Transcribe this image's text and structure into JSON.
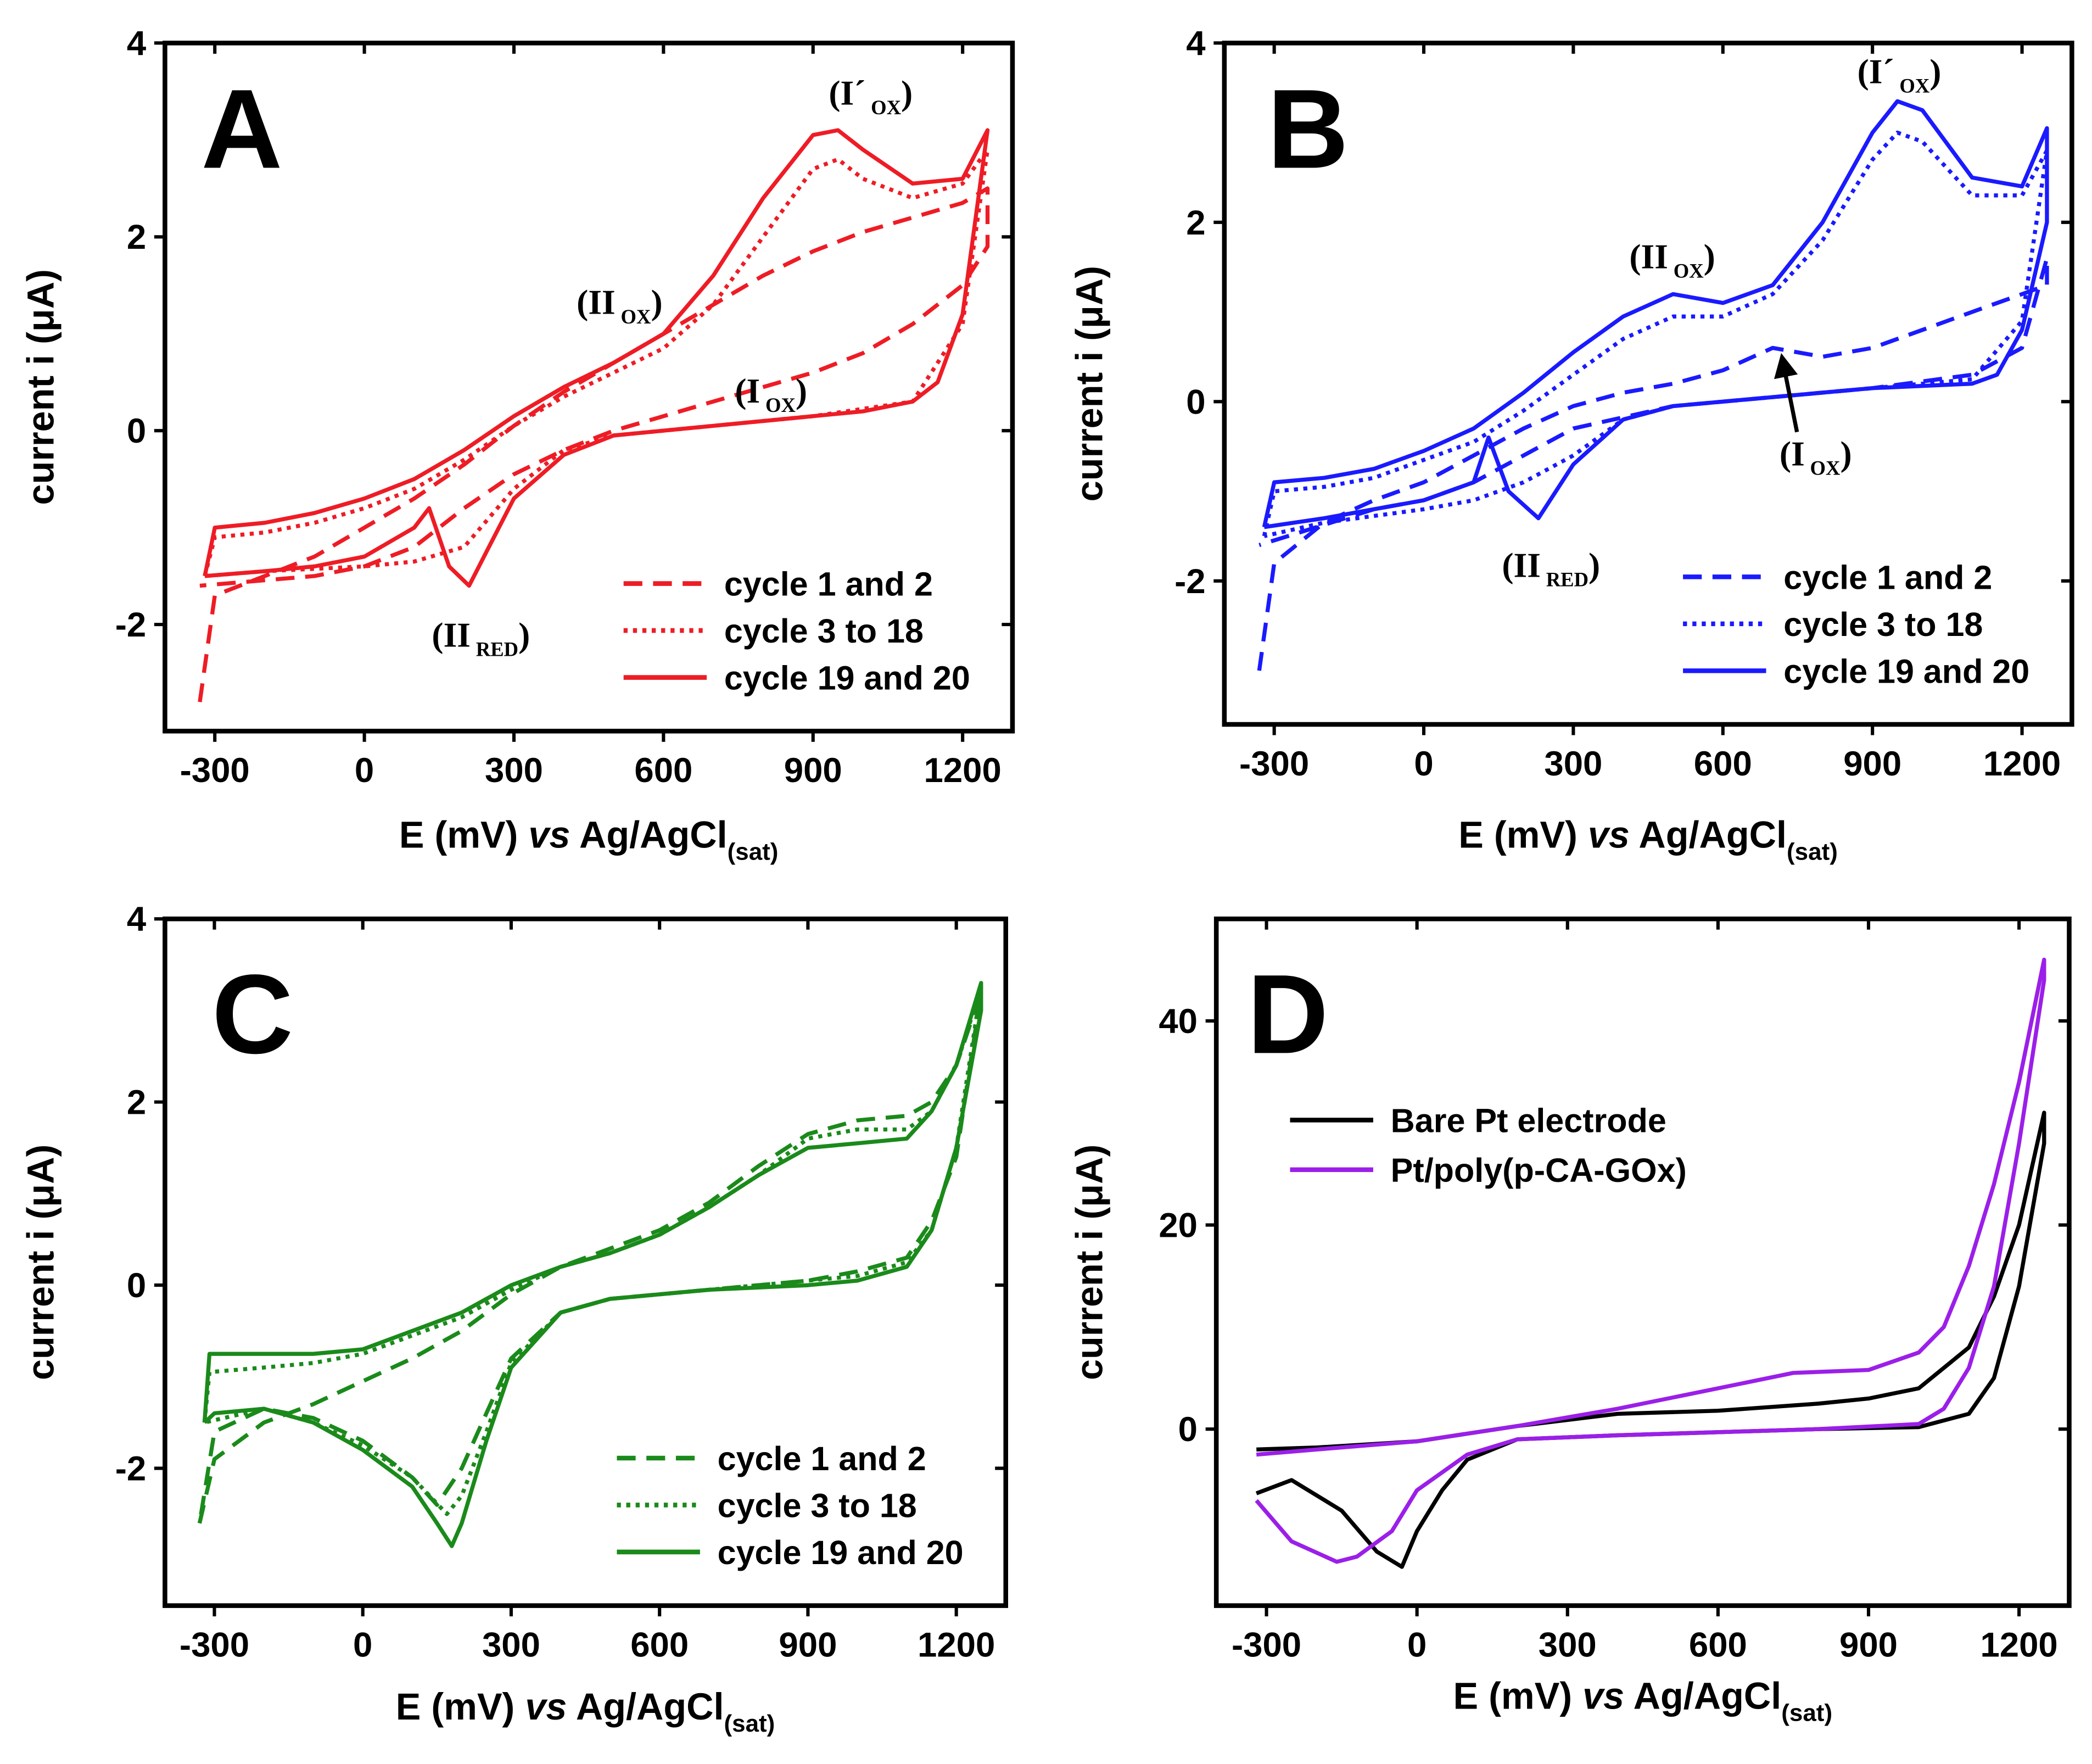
{
  "chart_data": [
    {
      "type": "line",
      "title": "A",
      "legend": "lower right",
      "x_label": {
        "pre": "E (mV) ",
        "italic": "vs",
        "post": " Ag/AgCl",
        "sub": "(sat)"
      },
      "y_label": "current i (μA)",
      "xlim": [
        -400,
        1300
      ],
      "xticks": [
        -300,
        0,
        300,
        600,
        900,
        1200
      ],
      "ylim": [
        -3.1,
        4
      ],
      "yticks": [
        -2,
        0,
        2,
        4
      ],
      "annotations": [
        {
          "main": "(I´",
          "sub": "OX",
          "end": ")"
        },
        {
          "main": "(II",
          "sub": "OX",
          "end": ")"
        },
        {
          "main": "(I",
          "sub": "OX",
          "end": ")"
        },
        {
          "main": "(II",
          "sub": "RED",
          "end": ")"
        }
      ],
      "series": [
        {
          "name": "cycle 1 and 2",
          "color": "#ee1c25",
          "linestyle": "dashed",
          "x": [
            -330,
            -300,
            -200,
            -100,
            0,
            100,
            200,
            300,
            400,
            500,
            600,
            700,
            800,
            900,
            1000,
            1100,
            1200,
            1250,
            1250,
            1200,
            1100,
            1000,
            900,
            800,
            700,
            600,
            500,
            400,
            300,
            200,
            100,
            0,
            -100,
            -330
          ],
          "values": [
            -2.8,
            -1.7,
            -1.5,
            -1.3,
            -1.0,
            -0.7,
            -0.35,
            0.05,
            0.4,
            0.7,
            1.0,
            1.3,
            1.6,
            1.85,
            2.05,
            2.2,
            2.35,
            2.5,
            1.9,
            1.5,
            1.1,
            0.8,
            0.6,
            0.45,
            0.3,
            0.15,
            0.0,
            -0.2,
            -0.45,
            -0.8,
            -1.2,
            -1.4,
            -1.5,
            -1.6
          ]
        },
        {
          "name": "cycle 3 to 18",
          "color": "#ee1c25",
          "linestyle": "dotted",
          "x": [
            -320,
            -300,
            -200,
            -100,
            0,
            100,
            200,
            300,
            400,
            500,
            600,
            700,
            800,
            900,
            950,
            1000,
            1100,
            1200,
            1250,
            1200,
            1100,
            900,
            700,
            500,
            400,
            300,
            200,
            100,
            0,
            -200,
            -320
          ],
          "values": [
            -1.5,
            -1.1,
            -1.05,
            -0.95,
            -0.8,
            -0.6,
            -0.3,
            0.05,
            0.35,
            0.6,
            0.85,
            1.3,
            2.0,
            2.7,
            2.8,
            2.6,
            2.4,
            2.55,
            2.9,
            1.1,
            0.3,
            0.15,
            0.05,
            -0.05,
            -0.2,
            -0.6,
            -1.2,
            -1.35,
            -1.4,
            -1.45,
            -1.5
          ]
        },
        {
          "name": "cycle 19 and 20",
          "color": "#ee1c25",
          "linestyle": "solid",
          "x": [
            -320,
            -300,
            -200,
            -100,
            0,
            100,
            200,
            300,
            400,
            500,
            600,
            700,
            800,
            900,
            950,
            1000,
            1100,
            1200,
            1250,
            1200,
            1150,
            1100,
            1000,
            900,
            700,
            500,
            400,
            300,
            250,
            210,
            170,
            130,
            100,
            0,
            -100,
            -200,
            -320
          ],
          "values": [
            -1.5,
            -1.0,
            -0.95,
            -0.85,
            -0.7,
            -0.5,
            -0.2,
            0.15,
            0.45,
            0.7,
            1.0,
            1.6,
            2.4,
            3.05,
            3.1,
            2.9,
            2.55,
            2.6,
            3.1,
            1.2,
            0.5,
            0.3,
            0.2,
            0.15,
            0.05,
            -0.05,
            -0.25,
            -0.7,
            -1.2,
            -1.6,
            -1.4,
            -0.8,
            -1.0,
            -1.3,
            -1.4,
            -1.45,
            -1.5
          ]
        }
      ]
    },
    {
      "type": "line",
      "title": "B",
      "legend": "lower right",
      "x_label": {
        "pre": "E (mV) ",
        "italic": "vs",
        "post": " Ag/AgCl",
        "sub": "(sat)"
      },
      "y_label": "current i (μA)",
      "xlim": [
        -400,
        1300
      ],
      "xticks": [
        -300,
        0,
        300,
        600,
        900,
        1200
      ],
      "ylim": [
        -3.6,
        4
      ],
      "yticks": [
        -2,
        0,
        2,
        4
      ],
      "annotations": [
        {
          "main": "(I´",
          "sub": "OX",
          "end": ")"
        },
        {
          "main": "(II",
          "sub": "OX",
          "end": ")"
        },
        {
          "main": "(I",
          "sub": "OX",
          "end": ")"
        },
        {
          "main": "(II",
          "sub": "RED",
          "end": ")"
        }
      ],
      "series": [
        {
          "name": "cycle 1 and 2",
          "color": "#1a1aff",
          "linestyle": "dashed",
          "x": [
            -330,
            -300,
            -200,
            -100,
            0,
            100,
            200,
            300,
            400,
            500,
            600,
            700,
            800,
            900,
            1000,
            1100,
            1200,
            1250,
            1250,
            1200,
            1100,
            900,
            700,
            500,
            300,
            200,
            100,
            0,
            -100,
            -330
          ],
          "values": [
            -3.0,
            -1.8,
            -1.35,
            -1.1,
            -0.9,
            -0.6,
            -0.3,
            -0.05,
            0.1,
            0.2,
            0.35,
            0.6,
            0.5,
            0.6,
            0.8,
            1.0,
            1.2,
            1.3,
            1.6,
            0.6,
            0.3,
            0.15,
            0.05,
            -0.05,
            -0.3,
            -0.6,
            -0.9,
            -1.1,
            -1.2,
            -1.6
          ]
        },
        {
          "name": "cycle 3 to 18",
          "color": "#1a1aff",
          "linestyle": "dotted",
          "x": [
            -320,
            -300,
            -200,
            -100,
            0,
            100,
            200,
            300,
            400,
            500,
            600,
            700,
            800,
            900,
            950,
            1000,
            1100,
            1200,
            1250,
            1200,
            1100,
            900,
            700,
            500,
            400,
            300,
            200,
            100,
            0,
            -200,
            -320
          ],
          "values": [
            -1.5,
            -1.0,
            -0.95,
            -0.85,
            -0.65,
            -0.45,
            -0.1,
            0.3,
            0.7,
            0.95,
            0.95,
            1.2,
            1.8,
            2.7,
            3.0,
            2.9,
            2.3,
            2.3,
            2.8,
            0.9,
            0.25,
            0.15,
            0.05,
            -0.05,
            -0.2,
            -0.6,
            -0.9,
            -1.1,
            -1.2,
            -1.35,
            -1.5
          ]
        },
        {
          "name": "cycle 19 and 20",
          "color": "#1a1aff",
          "linestyle": "solid",
          "x": [
            -320,
            -300,
            -200,
            -100,
            0,
            100,
            200,
            300,
            400,
            500,
            600,
            700,
            800,
            900,
            950,
            1000,
            1100,
            1200,
            1250,
            1250,
            1200,
            1150,
            1100,
            900,
            700,
            500,
            400,
            300,
            230,
            170,
            130,
            100,
            0,
            -100,
            -200,
            -320
          ],
          "values": [
            -1.4,
            -0.9,
            -0.85,
            -0.75,
            -0.55,
            -0.3,
            0.1,
            0.55,
            0.95,
            1.2,
            1.1,
            1.3,
            2.0,
            3.0,
            3.35,
            3.25,
            2.5,
            2.4,
            3.05,
            2.0,
            0.8,
            0.3,
            0.2,
            0.15,
            0.05,
            -0.05,
            -0.2,
            -0.7,
            -1.3,
            -1.0,
            -0.4,
            -0.9,
            -1.1,
            -1.2,
            -1.3,
            -1.4
          ]
        }
      ]
    },
    {
      "type": "line",
      "title": "C",
      "legend": "lower right",
      "x_label": {
        "pre": "E (mV) ",
        "italic": "vs",
        "post": " Ag/AgCl",
        "sub": "(sat)"
      },
      "y_label": "current i (μA)",
      "xlim": [
        -400,
        1300
      ],
      "xticks": [
        -300,
        0,
        300,
        600,
        900,
        1200
      ],
      "ylim": [
        -3.5,
        4
      ],
      "yticks": [
        -2,
        0,
        2,
        4
      ],
      "series": [
        {
          "name": "cycle 1 and 2",
          "color": "#1a8a1a",
          "linestyle": "dashed",
          "x": [
            -330,
            -300,
            -200,
            -100,
            0,
            100,
            200,
            300,
            400,
            500,
            600,
            700,
            800,
            900,
            1000,
            1100,
            1150,
            1200,
            1250,
            1200,
            1150,
            1100,
            1000,
            900,
            700,
            500,
            400,
            300,
            250,
            200,
            150,
            100,
            0,
            -100,
            -200,
            -300,
            -330
          ],
          "values": [
            -2.6,
            -1.9,
            -1.5,
            -1.3,
            -1.05,
            -0.8,
            -0.5,
            -0.1,
            0.2,
            0.4,
            0.6,
            0.9,
            1.3,
            1.65,
            1.8,
            1.85,
            2.0,
            2.4,
            3.2,
            1.4,
            0.7,
            0.3,
            0.15,
            0.05,
            -0.05,
            -0.15,
            -0.3,
            -0.8,
            -1.4,
            -2.0,
            -2.4,
            -2.1,
            -1.7,
            -1.45,
            -1.35,
            -1.6,
            -2.6
          ]
        },
        {
          "name": "cycle 3 to 18",
          "color": "#1a8a1a",
          "linestyle": "dotted",
          "x": [
            -320,
            -310,
            -200,
            -100,
            0,
            100,
            200,
            300,
            400,
            500,
            600,
            700,
            800,
            900,
            1000,
            1100,
            1150,
            1200,
            1250,
            1200,
            1150,
            1100,
            1000,
            900,
            700,
            500,
            400,
            300,
            250,
            200,
            170,
            100,
            0,
            -100,
            -200,
            -320
          ],
          "values": [
            -1.5,
            -0.95,
            -0.9,
            -0.85,
            -0.75,
            -0.55,
            -0.35,
            -0.05,
            0.2,
            0.35,
            0.55,
            0.85,
            1.2,
            1.6,
            1.7,
            1.7,
            1.9,
            2.4,
            3.25,
            1.5,
            0.6,
            0.25,
            0.1,
            0.05,
            -0.05,
            -0.15,
            -0.3,
            -0.85,
            -1.6,
            -2.3,
            -2.5,
            -2.1,
            -1.75,
            -1.5,
            -1.35,
            -1.5
          ]
        },
        {
          "name": "cycle 19 and 20",
          "color": "#1a8a1a",
          "linestyle": "solid",
          "x": [
            -320,
            -310,
            -200,
            -100,
            0,
            100,
            200,
            300,
            400,
            500,
            600,
            700,
            800,
            900,
            1000,
            1100,
            1150,
            1200,
            1250,
            1250,
            1200,
            1150,
            1100,
            1000,
            900,
            700,
            500,
            400,
            300,
            250,
            200,
            180,
            150,
            100,
            0,
            -100,
            -200,
            -300,
            -320
          ],
          "values": [
            -1.5,
            -0.75,
            -0.75,
            -0.75,
            -0.7,
            -0.5,
            -0.3,
            0.0,
            0.2,
            0.35,
            0.55,
            0.85,
            1.2,
            1.5,
            1.55,
            1.6,
            1.9,
            2.4,
            3.3,
            3.0,
            1.5,
            0.6,
            0.2,
            0.05,
            0.0,
            -0.05,
            -0.15,
            -0.3,
            -0.9,
            -1.7,
            -2.6,
            -2.85,
            -2.6,
            -2.2,
            -1.8,
            -1.5,
            -1.35,
            -1.4,
            -1.5
          ]
        }
      ]
    },
    {
      "type": "line",
      "title": "D",
      "legend": "upper left",
      "x_label": {
        "pre": "E (mV) ",
        "italic": "vs",
        "post": " Ag/AgCl",
        "sub": "(sat)"
      },
      "y_label": "current i (μA)",
      "xlim": [
        -400,
        1300
      ],
      "xticks": [
        -300,
        0,
        300,
        600,
        900,
        1200
      ],
      "ylim": [
        -17.3,
        50
      ],
      "yticks": [
        0,
        20,
        40
      ],
      "series": [
        {
          "name": "Bare Pt electrode",
          "color": "#000000",
          "linestyle": "solid",
          "x": [
            -320,
            -200,
            0,
            200,
            400,
            600,
            800,
            900,
            1000,
            1100,
            1150,
            1200,
            1250,
            1250,
            1200,
            1150,
            1100,
            1000,
            800,
            600,
            400,
            200,
            100,
            50,
            0,
            -30,
            -80,
            -150,
            -250,
            -320
          ],
          "values": [
            -2,
            -1.8,
            -1.2,
            0.3,
            1.5,
            1.8,
            2.5,
            3.0,
            4.0,
            8,
            13,
            20,
            31,
            28,
            14,
            5,
            1.5,
            0.2,
            0,
            -0.3,
            -0.6,
            -1.0,
            -3,
            -6,
            -10,
            -13.5,
            -12,
            -8,
            -5,
            -6.3
          ]
        },
        {
          "name": "Pt/poly(p-CA-GOx)",
          "color": "#9b1fe8",
          "linestyle": "solid",
          "x": [
            -320,
            -200,
            0,
            200,
            400,
            600,
            750,
            900,
            1000,
            1050,
            1100,
            1150,
            1200,
            1250,
            1250,
            1200,
            1150,
            1100,
            1050,
            1000,
            800,
            600,
            400,
            200,
            100,
            0,
            -50,
            -120,
            -160,
            -250,
            -320
          ],
          "values": [
            -2.5,
            -2.0,
            -1.2,
            0.3,
            2.0,
            4.0,
            5.5,
            5.8,
            7.5,
            10,
            16,
            24,
            34,
            46,
            44,
            28,
            14,
            6,
            2,
            0.5,
            0,
            -0.3,
            -0.6,
            -1.0,
            -2.5,
            -6,
            -10,
            -12.5,
            -13,
            -11,
            -7
          ]
        }
      ]
    }
  ]
}
